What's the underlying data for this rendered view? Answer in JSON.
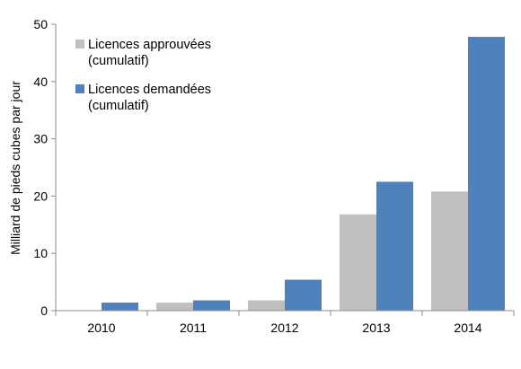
{
  "chart_data": {
    "type": "bar",
    "title": "",
    "xlabel": "",
    "ylabel": "Milliard de pieds cubes par jour",
    "categories": [
      "2010",
      "2011",
      "2012",
      "2013",
      "2014"
    ],
    "ylim": [
      0,
      50
    ],
    "yticks": [
      0,
      10,
      20,
      30,
      40,
      50
    ],
    "grid": false,
    "legend_position": "top-left",
    "series": [
      {
        "name": "Licences approuvées (cumulatif)",
        "legend_lines": [
          "Licences approuvées",
          "(cumulatif)"
        ],
        "color": "#bfbfbf",
        "values": [
          0,
          1.4,
          1.8,
          16.8,
          20.8
        ]
      },
      {
        "name": "Licences demandées (cumulatif)",
        "legend_lines": [
          "Licences demandées",
          "(cumulatif)"
        ],
        "color": "#4f81bd",
        "values": [
          1.4,
          1.8,
          5.4,
          22.5,
          47.8
        ]
      }
    ]
  }
}
